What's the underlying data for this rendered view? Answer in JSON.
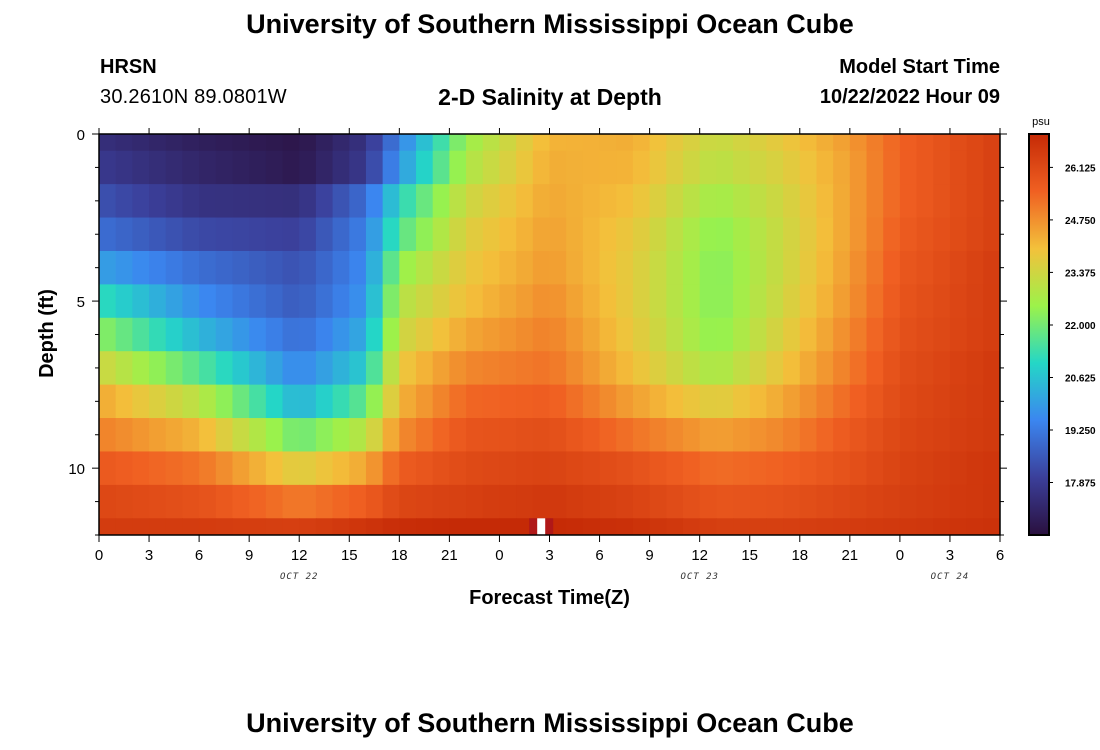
{
  "header": {
    "title": "University of Southern Mississippi Ocean Cube",
    "station": "HRSN",
    "coords": "30.2610N  89.0801W",
    "subtitle": "2-D Salinity at Depth",
    "model_label": "Model Start Time",
    "model_time": "10/22/2022 Hour 09"
  },
  "footer": {
    "title": "University of Southern Mississippi Ocean Cube"
  },
  "chart_data": {
    "type": "heatmap",
    "title": "2-D Salinity at Depth",
    "xlabel": "Forecast Time(Z)",
    "ylabel": "Depth (ft)",
    "x_range": [
      0,
      54
    ],
    "x_ticks": [
      0,
      3,
      6,
      9,
      12,
      15,
      18,
      21,
      24,
      27,
      30,
      33,
      36,
      39,
      42,
      45,
      48,
      51,
      54
    ],
    "x_tick_labels": [
      "0",
      "3",
      "6",
      "9",
      "12",
      "15",
      "18",
      "21",
      "0",
      "3",
      "6",
      "9",
      "12",
      "15",
      "18",
      "21",
      "0",
      "3",
      "6"
    ],
    "date_labels": [
      {
        "x": 12,
        "text": "OCT 22"
      },
      {
        "x": 36,
        "text": "OCT 23"
      },
      {
        "x": 51,
        "text": "OCT 24"
      }
    ],
    "y_range": [
      0,
      12
    ],
    "y_ticks": [
      0,
      5,
      10
    ],
    "y_tick_labels": [
      "0",
      "5",
      "10"
    ],
    "depth_levels_ft": [
      0.25,
      1,
      2,
      3,
      4,
      5,
      6,
      7,
      8,
      9,
      10,
      11,
      11.75
    ],
    "time_hours": [
      0,
      6,
      12,
      16,
      18,
      22,
      27,
      32,
      37,
      41,
      45,
      48,
      54
    ],
    "salinity_psu": [
      [
        17.5,
        17.0,
        16.7,
        17.6,
        19.4,
        22.5,
        24.2,
        24.3,
        23.2,
        23.8,
        24.6,
        25.5,
        26.4
      ],
      [
        17.8,
        17.2,
        16.8,
        17.8,
        19.8,
        22.8,
        24.3,
        24.2,
        23.0,
        23.6,
        24.5,
        25.5,
        26.4
      ],
      [
        18.4,
        17.6,
        17.5,
        19.0,
        21.0,
        23.3,
        24.4,
        24.0,
        22.6,
        23.4,
        24.5,
        25.5,
        26.4
      ],
      [
        19.0,
        18.2,
        18.0,
        19.4,
        21.6,
        23.6,
        24.5,
        23.8,
        22.3,
        23.3,
        24.5,
        25.6,
        26.4
      ],
      [
        20.0,
        19.0,
        18.4,
        19.6,
        22.4,
        23.8,
        24.6,
        23.7,
        22.2,
        23.3,
        24.6,
        25.7,
        26.5
      ],
      [
        21.2,
        19.6,
        18.6,
        19.8,
        22.9,
        24.0,
        24.8,
        23.7,
        22.2,
        23.4,
        24.7,
        25.8,
        26.5
      ],
      [
        22.3,
        20.4,
        19.0,
        20.2,
        23.3,
        24.4,
        25.0,
        23.8,
        22.3,
        23.6,
        24.9,
        25.9,
        26.5
      ],
      [
        23.4,
        21.6,
        19.5,
        20.8,
        23.8,
        24.9,
        25.2,
        24.0,
        22.7,
        23.9,
        25.1,
        26.0,
        26.6
      ],
      [
        24.4,
        23.0,
        20.3,
        21.8,
        24.2,
        25.4,
        25.6,
        24.5,
        23.6,
        24.4,
        25.4,
        26.1,
        26.6
      ],
      [
        25.0,
        24.2,
        21.9,
        23.0,
        24.8,
        25.8,
        26.0,
        25.2,
        24.5,
        24.9,
        25.7,
        26.2,
        26.6
      ],
      [
        25.7,
        25.2,
        23.6,
        24.4,
        25.6,
        26.1,
        26.3,
        25.9,
        25.3,
        25.5,
        25.9,
        26.3,
        26.7
      ],
      [
        26.2,
        25.9,
        25.1,
        25.6,
        26.2,
        26.4,
        26.6,
        26.3,
        25.8,
        25.9,
        26.2,
        26.4,
        26.7
      ],
      [
        26.5,
        26.5,
        26.4,
        26.7,
        26.9,
        27.0,
        27.0,
        26.8,
        26.4,
        26.4,
        26.5,
        26.6,
        26.8
      ]
    ],
    "colorbar": {
      "unit": "psu",
      "min": 16.5,
      "max": 27.0,
      "ticks": [
        17.875,
        19.25,
        20.625,
        22.0,
        23.375,
        24.75,
        26.125
      ],
      "tick_labels": [
        "17.875",
        "19.250",
        "20.625",
        "22.000",
        "23.375",
        "24.750",
        "26.125"
      ],
      "colors": [
        "#2a103e",
        "#3b3f9a",
        "#3b86f0",
        "#24d7c6",
        "#9cf24a",
        "#f3c13b",
        "#f06022",
        "#c52a06"
      ]
    },
    "marker": {
      "x": 26.5,
      "depth": 11.75,
      "colors": [
        "#ffffff",
        "#b01818"
      ]
    }
  }
}
